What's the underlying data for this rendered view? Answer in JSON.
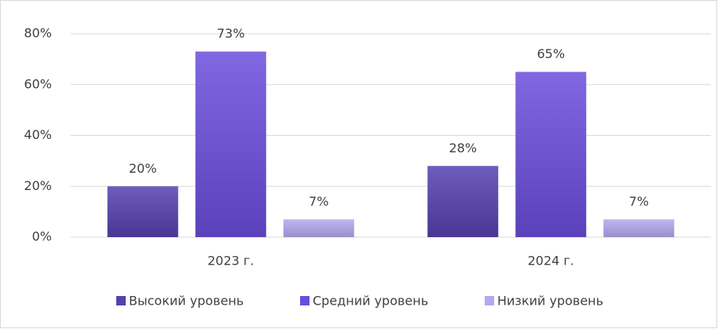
{
  "chart_data": {
    "type": "bar",
    "categories": [
      "2023 г.",
      "2024 г."
    ],
    "series": [
      {
        "name": "Высокий уровень",
        "color": "#5540b0",
        "values": [
          20,
          28
        ],
        "value_labels": [
          "20%",
          "28%"
        ]
      },
      {
        "name": "Средний уровень",
        "color": "#6a4ddc",
        "values": [
          73,
          65
        ],
        "value_labels": [
          "73%",
          "65%"
        ]
      },
      {
        "name": "Низкий уровень",
        "color": "#b4a8ee",
        "values": [
          7,
          7
        ],
        "value_labels": [
          "7%",
          "7%"
        ]
      }
    ],
    "ylim": [
      0,
      80
    ],
    "yticks": [
      {
        "value": 0,
        "label": "0%"
      },
      {
        "value": 20,
        "label": "20%"
      },
      {
        "value": 40,
        "label": "40%"
      },
      {
        "value": 60,
        "label": "60%"
      },
      {
        "value": 80,
        "label": "80%"
      }
    ],
    "grid": true,
    "legend": "bottom"
  }
}
